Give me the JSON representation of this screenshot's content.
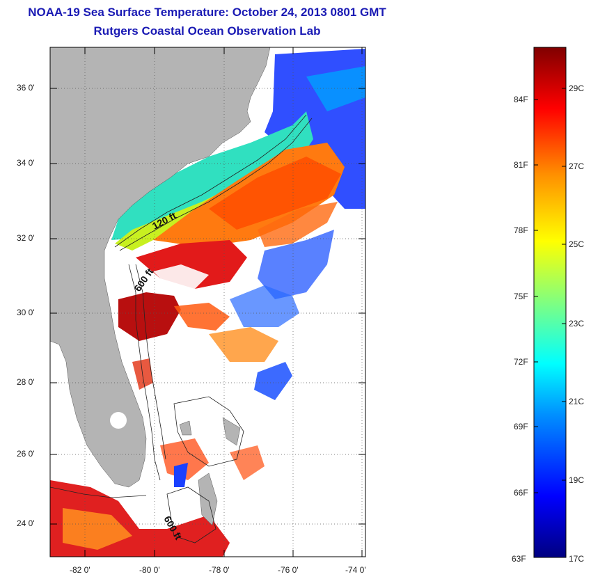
{
  "title": "NOAA-19 Sea Surface Temperature:  October 24, 2013 0801 GMT",
  "subtitle": "Rutgers Coastal Ocean Observation Lab",
  "map": {
    "lat_labels": [
      "36 0'",
      "34 0'",
      "32 0'",
      "30 0'",
      "28 0'",
      "26 0'",
      "24 0'"
    ],
    "lon_labels": [
      "-82 0'",
      "-80 0'",
      "-78 0'",
      "-76 0'",
      "-74 0'"
    ],
    "contour_labels": [
      "120 ft",
      "600 ft",
      "600 ft"
    ]
  },
  "colorbar": {
    "fahrenheit_labels": [
      "84F",
      "81F",
      "78F",
      "75F",
      "72F",
      "69F",
      "66F",
      "63F"
    ],
    "celsius_labels": [
      "29C",
      "27C",
      "25C",
      "23C",
      "21C",
      "19C",
      "17C"
    ],
    "range_c": [
      17,
      30
    ]
  },
  "colors": {
    "land": "#b4b4b4",
    "title": "#1a1ab4",
    "cloud_mask": "#ffffff"
  }
}
